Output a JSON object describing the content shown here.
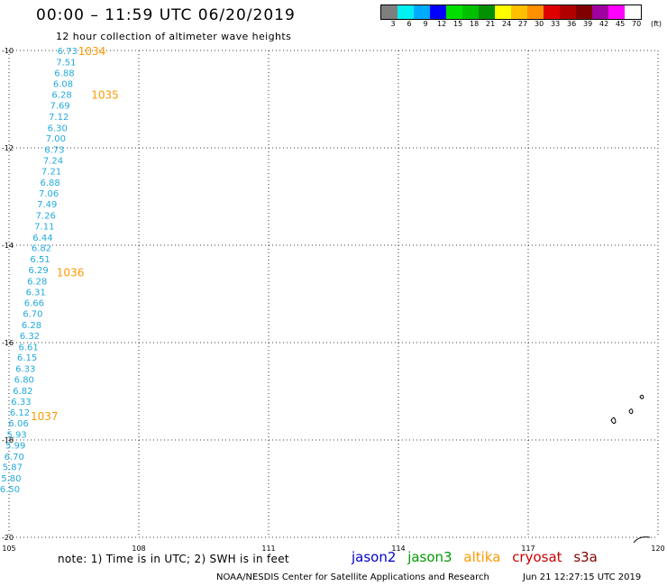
{
  "title": "00:00 – 11:59 UTC 06/20/2019",
  "subtitle": "12 hour collection of altimeter wave heights",
  "colorbar": {
    "unit": "(ft)",
    "colors": [
      "#7f7f7f",
      "#00f0f0",
      "#00aaff",
      "#0000ff",
      "#00e000",
      "#00c000",
      "#009000",
      "#ffff00",
      "#ffc000",
      "#ff9000",
      "#e00000",
      "#b00000",
      "#800000",
      "#a000a0",
      "#ff00ff",
      "#ffffff"
    ],
    "labels": [
      "3",
      "6",
      "9",
      "12",
      "15",
      "18",
      "21",
      "24",
      "27",
      "30",
      "33",
      "36",
      "39",
      "42",
      "45",
      "70"
    ]
  },
  "map": {
    "lon_range": [
      105,
      120
    ],
    "lat_range": [
      -20,
      -10
    ],
    "lon_ticks": [
      "105",
      "108",
      "111",
      "114",
      "117",
      "120"
    ],
    "lat_ticks": [
      "-10",
      "-12",
      "-14",
      "-16",
      "-18",
      "-20"
    ]
  },
  "swh_track": {
    "color": "#22aadd",
    "points": [
      {
        "lon": 106.35,
        "lat": -10.0,
        "v": "6.73"
      },
      {
        "lon": 106.32,
        "lat": -10.23,
        "v": "7.51"
      },
      {
        "lon": 106.28,
        "lat": -10.45,
        "v": "6.88"
      },
      {
        "lon": 106.25,
        "lat": -10.68,
        "v": "6.08"
      },
      {
        "lon": 106.22,
        "lat": -10.9,
        "v": "6.28"
      },
      {
        "lon": 106.18,
        "lat": -11.12,
        "v": "7.69"
      },
      {
        "lon": 106.15,
        "lat": -11.35,
        "v": "7.12"
      },
      {
        "lon": 106.12,
        "lat": -11.58,
        "v": "6.30"
      },
      {
        "lon": 106.08,
        "lat": -11.8,
        "v": "7.00"
      },
      {
        "lon": 106.05,
        "lat": -12.03,
        "v": "6.73"
      },
      {
        "lon": 106.02,
        "lat": -12.25,
        "v": "7.24"
      },
      {
        "lon": 105.98,
        "lat": -12.47,
        "v": "7.21"
      },
      {
        "lon": 105.95,
        "lat": -12.7,
        "v": "6.88"
      },
      {
        "lon": 105.92,
        "lat": -12.93,
        "v": "7.06"
      },
      {
        "lon": 105.88,
        "lat": -13.15,
        "v": "7.49"
      },
      {
        "lon": 105.85,
        "lat": -13.38,
        "v": "7.26"
      },
      {
        "lon": 105.82,
        "lat": -13.6,
        "v": "7.11"
      },
      {
        "lon": 105.78,
        "lat": -13.83,
        "v": "6.44"
      },
      {
        "lon": 105.75,
        "lat": -14.05,
        "v": "6.82"
      },
      {
        "lon": 105.72,
        "lat": -14.28,
        "v": "6.51"
      },
      {
        "lon": 105.68,
        "lat": -14.5,
        "v": "6.29"
      },
      {
        "lon": 105.65,
        "lat": -14.73,
        "v": "6.28"
      },
      {
        "lon": 105.62,
        "lat": -14.95,
        "v": "6.31"
      },
      {
        "lon": 105.58,
        "lat": -15.18,
        "v": "6.66"
      },
      {
        "lon": 105.55,
        "lat": -15.4,
        "v": "6.70"
      },
      {
        "lon": 105.52,
        "lat": -15.63,
        "v": "6.28"
      },
      {
        "lon": 105.48,
        "lat": -15.85,
        "v": "6.32"
      },
      {
        "lon": 105.45,
        "lat": -16.08,
        "v": "6.61"
      },
      {
        "lon": 105.42,
        "lat": -16.3,
        "v": "6.15"
      },
      {
        "lon": 105.38,
        "lat": -16.53,
        "v": "6.33"
      },
      {
        "lon": 105.35,
        "lat": -16.75,
        "v": "6.80"
      },
      {
        "lon": 105.32,
        "lat": -16.98,
        "v": "6.82"
      },
      {
        "lon": 105.28,
        "lat": -17.2,
        "v": "6.33"
      },
      {
        "lon": 105.25,
        "lat": -17.43,
        "v": "6.12"
      },
      {
        "lon": 105.22,
        "lat": -17.65,
        "v": "6.06"
      },
      {
        "lon": 105.18,
        "lat": -17.88,
        "v": "5.93"
      },
      {
        "lon": 105.15,
        "lat": -18.1,
        "v": "5.99"
      },
      {
        "lon": 105.12,
        "lat": -18.33,
        "v": "6.70"
      },
      {
        "lon": 105.08,
        "lat": -18.55,
        "v": "5.87"
      },
      {
        "lon": 105.05,
        "lat": -18.78,
        "v": "5.80"
      },
      {
        "lon": 105.02,
        "lat": -19.0,
        "v": "6.50"
      }
    ]
  },
  "pass_labels": {
    "color": "#ff9900",
    "items": [
      {
        "text": "1034",
        "lon": 106.6,
        "lat": -10.0
      },
      {
        "text": "1035",
        "lon": 106.9,
        "lat": -10.9
      },
      {
        "text": "1036",
        "lon": 106.1,
        "lat": -14.55
      },
      {
        "text": "1037",
        "lon": 105.5,
        "lat": -17.5
      }
    ]
  },
  "footnote": "note:  1) Time is in UTC;  2) SWH is in feet",
  "legend": [
    {
      "name": "jason2",
      "color": "#0000cc"
    },
    {
      "name": "jason3",
      "color": "#009900"
    },
    {
      "name": "altika",
      "color": "#ff9900"
    },
    {
      "name": "cryosat",
      "color": "#cc0000"
    },
    {
      "name": "s3a",
      "color": "#800000"
    }
  ],
  "credit": "NOAA/NESDIS Center for Satellite Applications and Research",
  "timestamp": "Jun 21 12:27:15 UTC 2019"
}
